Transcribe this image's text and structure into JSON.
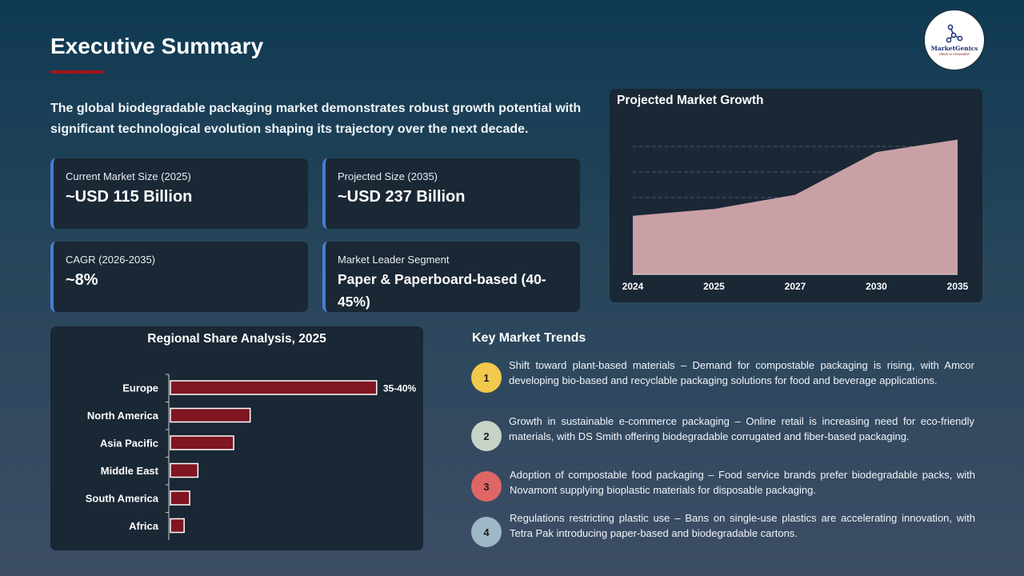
{
  "header": {
    "title": "Executive Summary",
    "logo_name": "MarketGenics",
    "logo_tagline": "Ideas to Innovation",
    "logo_icon": "molecule-network-icon"
  },
  "intro": "The global biodegradable packaging market demonstrates robust growth potential with significant technological evolution shaping its trajectory over the next decade.",
  "cards": [
    {
      "label": "Current Market Size (2025)",
      "value": "~USD 115 Billion"
    },
    {
      "label": "Projected Size (2035)",
      "value": "~USD 237 Billion"
    },
    {
      "label": "CAGR (2026-2035)",
      "value": "~8%"
    },
    {
      "label": "Market Leader Segment",
      "value": "Paper & Paperboard-based (40-45%)"
    }
  ],
  "colors": {
    "accent_red": "#a4161a",
    "card_border": "#4a7bd4",
    "area_fill": "#c9a0a6",
    "bar_fill": "#7f1622",
    "badges": [
      "#f2c94c",
      "#c8d3c8",
      "#e06666",
      "#9fb8c8"
    ]
  },
  "chart_data": [
    {
      "type": "area",
      "title": "Projected Market Growth",
      "x": [
        "2024",
        "2025",
        "2027",
        "2030",
        "2035"
      ],
      "values": [
        103,
        115,
        140,
        215,
        237
      ],
      "ylim": [
        0,
        270
      ],
      "grid": true
    },
    {
      "type": "bar",
      "orientation": "horizontal",
      "title": "Regional Share Analysis, 2025",
      "categories": [
        "Europe",
        "North America",
        "Asia Pacific",
        "Middle East",
        "South America",
        "Africa"
      ],
      "values": [
        37.5,
        14.5,
        11.5,
        5,
        3.5,
        2.5
      ],
      "data_labels": [
        "35-40%",
        "",
        "",
        "",
        "",
        ""
      ],
      "xlim": [
        0,
        48
      ]
    }
  ],
  "trends": {
    "title": "Key Market Trends",
    "items": [
      {
        "number": "1",
        "text": "Shift toward plant-based materials – Demand for compostable packaging is rising, with Amcor developing bio-based and recyclable packaging solutions for food and beverage applications."
      },
      {
        "number": "2",
        "text": "Growth in sustainable e-commerce packaging – Online retail is increasing need for eco-friendly materials, with DS Smith offering biodegradable corrugated and fiber-based packaging."
      },
      {
        "number": "3",
        "text": "Adoption of compostable food packaging – Food service brands prefer biodegradable packs, with Novamont supplying bioplastic materials for disposable packaging."
      },
      {
        "number": "4",
        "text": "Regulations restricting plastic use – Bans on single-use plastics are accelerating innovation, with Tetra Pak introducing paper-based and biodegradable cartons."
      }
    ]
  }
}
